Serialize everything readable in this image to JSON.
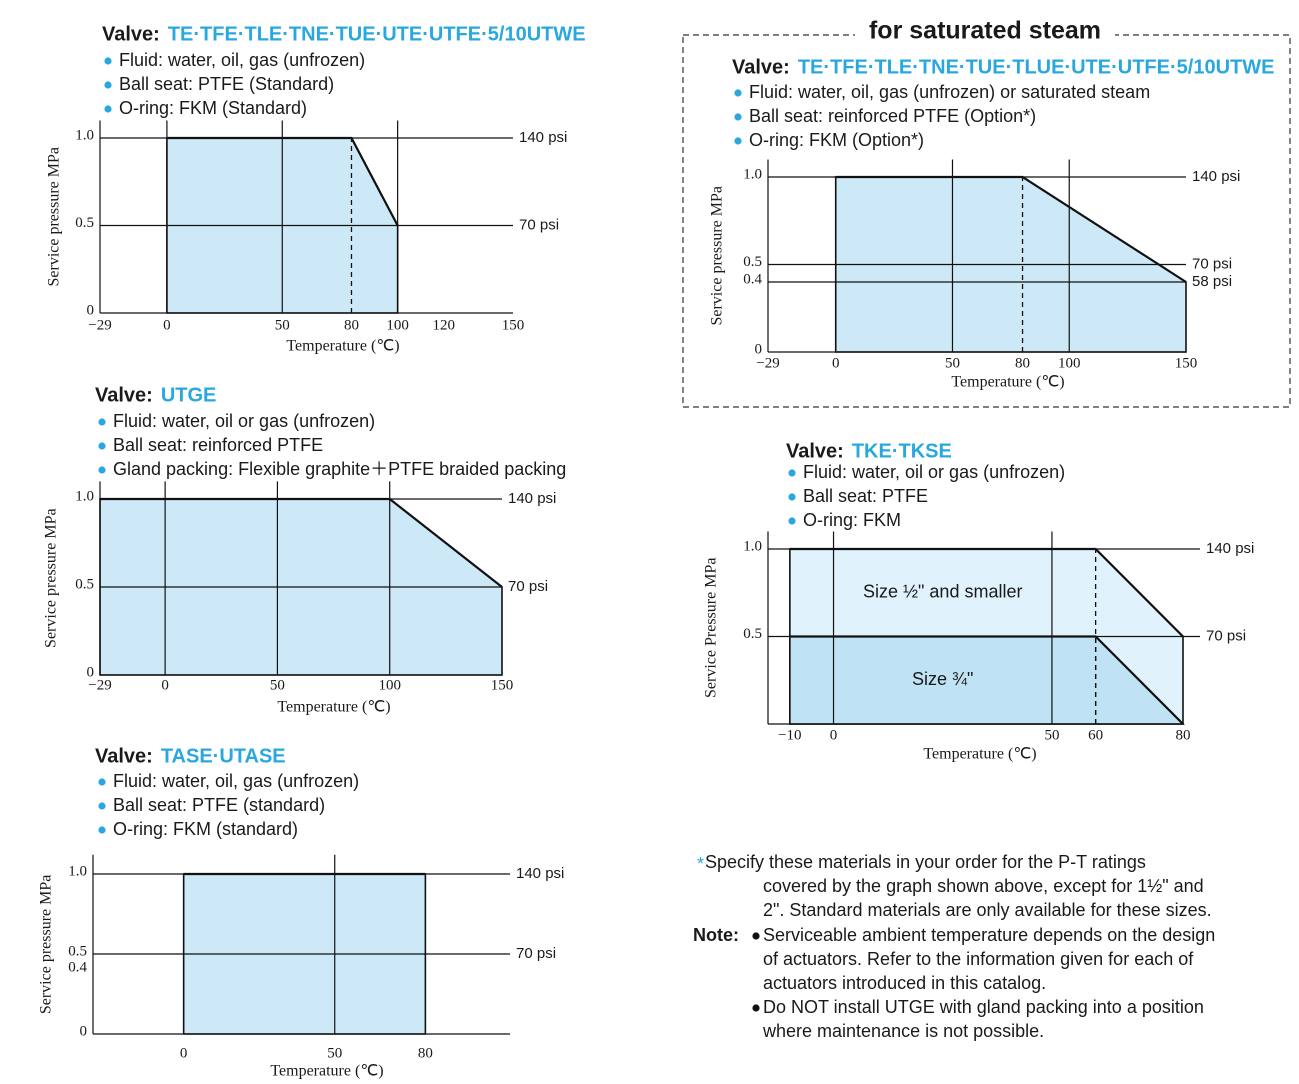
{
  "chart_data": [
    {
      "type": "area",
      "valve_label": "Valve:",
      "valve": "TE·TFE·TLE·TNE·TUE·UTE·UTFE·5/10UTWE",
      "bullets": [
        "Fluid: water, oil, gas (unfrozen)",
        "Ball seat: PTFE (Standard)",
        "O-ring: FKM (Standard)"
      ],
      "ylabel": "Service pressure MPa",
      "xlabel": "Temperature (℃)",
      "x": [
        0,
        80,
        100
      ],
      "series": [
        {
          "color": "#cde9f7",
          "values": [
            1,
            1,
            0.5
          ]
        }
      ],
      "xlim": [
        -29,
        150
      ],
      "ylim": [
        0,
        1.1
      ],
      "xticks": [
        {
          "value": -29,
          "label": "−29"
        },
        0,
        50,
        80,
        100,
        120,
        150
      ],
      "yticks": [
        0,
        0.5,
        {
          "value": 1,
          "label": "1.0"
        }
      ],
      "psi_ticks": [
        {
          "value": 1,
          "label": "140 psi"
        },
        {
          "value": 0.5,
          "label": "70 psi"
        }
      ],
      "grid_x": [
        0,
        50,
        100
      ],
      "grid_y": [
        0.5,
        1
      ]
    },
    {
      "type": "area",
      "title": "for saturated steam",
      "valve_label": "Valve:",
      "valve": "TE·TFE·TLE·TNE·TUE·TLUE·UTE·UTFE·5/10UTWE",
      "bullets": [
        "Fluid: water, oil, gas (unfrozen) or saturated steam",
        "Ball seat: reinforced PTFE (Option*)",
        "O-ring: FKM (Option*)"
      ],
      "ylabel": "Service pressure MPa",
      "xlabel": "Temperature (℃)",
      "x": [
        0,
        80,
        150
      ],
      "series": [
        {
          "color": "#cde9f7",
          "values": [
            1,
            1,
            0.4
          ]
        }
      ],
      "xlim": [
        -29,
        150
      ],
      "ylim": [
        0,
        1.1
      ],
      "xticks": [
        {
          "value": -29,
          "label": "−29"
        },
        0,
        50,
        80,
        100,
        150
      ],
      "yticks": [
        0,
        0.4,
        0.5,
        {
          "value": 1,
          "label": "1.0"
        }
      ],
      "psi_ticks": [
        {
          "value": 1,
          "label": "140 psi"
        },
        {
          "value": 0.5,
          "label": "70 psi"
        },
        {
          "value": 0.4,
          "label": "58 psi"
        }
      ],
      "grid_x": [
        50,
        100
      ],
      "grid_y": [
        0.4,
        0.5,
        1
      ]
    },
    {
      "type": "area",
      "valve_label": "Valve:",
      "valve": "UTGE",
      "bullets": [
        "Fluid: water, oil or gas (unfrozen)",
        "Ball seat: reinforced PTFE",
        "Gland packing: Flexible graphite＋PTFE braided packing"
      ],
      "ylabel": "Service pressure MPa",
      "xlabel": "Temperature (℃)",
      "x": [
        -29,
        100,
        150
      ],
      "series": [
        {
          "color": "#cde9f7",
          "values": [
            1,
            1,
            0.5
          ]
        }
      ],
      "xlim": [
        -29,
        150
      ],
      "ylim": [
        0,
        1.1
      ],
      "xticks": [
        {
          "value": -29,
          "label": "−29"
        },
        0,
        50,
        100,
        150
      ],
      "yticks": [
        0,
        0.5,
        {
          "value": 1,
          "label": "1.0"
        }
      ],
      "psi_ticks": [
        {
          "value": 1,
          "label": "140 psi"
        },
        {
          "value": 0.5,
          "label": "70 psi"
        }
      ],
      "grid_x": [
        0,
        50,
        100
      ],
      "grid_y": [
        0.5,
        1
      ]
    },
    {
      "type": "area",
      "valve_label": "Valve:",
      "valve": "TKE·TKSE",
      "bullets": [
        "Fluid: water, oil or gas (unfrozen)",
        "Ball seat: PTFE",
        "O-ring: FKM"
      ],
      "ylabel": "Service Pressure MPa",
      "xlabel": "Temperature (℃)",
      "x": [
        -10,
        60,
        80
      ],
      "series": [
        {
          "name": "Size ½\" and smaller",
          "color": "#e0f2fb",
          "values": [
            1,
            1,
            0.5
          ]
        },
        {
          "name": "Size ¾\"",
          "color": "#bfe2f4",
          "values": [
            0.5,
            0.5,
            0
          ]
        }
      ],
      "xlim": [
        -15,
        80
      ],
      "ylim": [
        0,
        1.1
      ],
      "xticks": [
        {
          "value": -10,
          "label": "−10"
        },
        0,
        50,
        60,
        80
      ],
      "yticks": [
        0.5,
        {
          "value": 1,
          "label": "1.0"
        }
      ],
      "psi_ticks": [
        {
          "value": 1,
          "label": "140 psi"
        },
        {
          "value": 0.5,
          "label": "70 psi"
        }
      ],
      "grid_x": [
        0,
        50
      ],
      "grid_y": [
        0.5,
        1
      ]
    },
    {
      "type": "area",
      "valve_label": "Valve:",
      "valve": "TASE·UTASE",
      "bullets": [
        "Fluid: water, oil, gas (unfrozen)",
        "Ball seat: PTFE (standard)",
        "O-ring: FKM (standard)"
      ],
      "ylabel": "Service pressure MPa",
      "xlabel": "Temperature (℃)",
      "x": [
        0,
        80
      ],
      "series": [
        {
          "color": "#cde9f7",
          "values": [
            1,
            1
          ]
        }
      ],
      "xlim": [
        -30,
        108
      ],
      "ylim": [
        0,
        1.12
      ],
      "xticks": [
        0,
        50,
        80
      ],
      "yticks": [
        0,
        0.4,
        0.5,
        {
          "value": 1,
          "label": "1.0"
        }
      ],
      "psi_ticks": [
        {
          "value": 1,
          "label": "140 psi"
        },
        {
          "value": 0.5,
          "label": "70 psi"
        }
      ],
      "grid_x": [
        50
      ],
      "grid_y": [
        0.5,
        1
      ]
    }
  ],
  "notes": {
    "star": "*",
    "specify": [
      "Specify these materials in your order for the P-T ratings",
      "covered by the graph shown above, except for 1½\" and",
      "2\". Standard materials are only available for these sizes."
    ],
    "note_label": "Note:",
    "items": [
      [
        "Serviceable ambient temperature depends on the design",
        "of actuators.  Refer to the information given for each of",
        "actuators introduced in this catalog."
      ],
      [
        "Do NOT install UTGE with gland packing into a position",
        "where maintenance is not possible."
      ]
    ]
  }
}
